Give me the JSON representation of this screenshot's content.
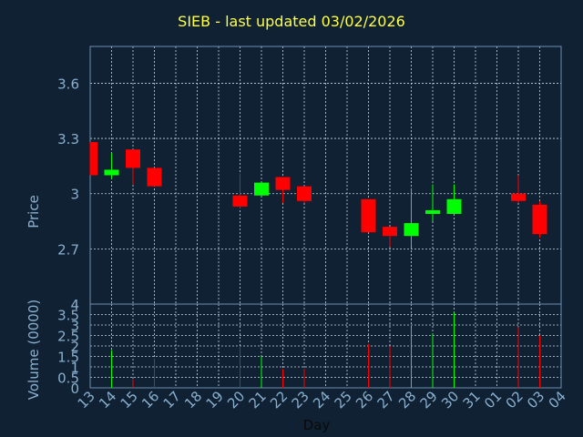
{
  "chart_data": {
    "type": "candlestick",
    "title": "SIEB - last updated 03/02/2026",
    "xlabel": "Day",
    "price_panel": {
      "ylabel": "Price",
      "ylim": [
        2.4,
        3.8
      ],
      "yticks": [
        "2.7",
        "3",
        "3.3",
        "3.6"
      ],
      "grid": true
    },
    "volume_panel": {
      "ylabel": "Volume (0000)",
      "ylim": [
        0,
        4
      ],
      "yticks": [
        "0",
        "0.5",
        "1",
        "1.5",
        "2",
        "2.5",
        "3",
        "3.5",
        "4"
      ],
      "grid": true
    },
    "x_tick_labels": [
      "13",
      "14",
      "15",
      "16",
      "17",
      "18",
      "19",
      "20",
      "21",
      "22",
      "23",
      "24",
      "25",
      "26",
      "27",
      "28",
      "29",
      "30",
      "31",
      "01",
      "02",
      "03",
      "04"
    ],
    "candles": [
      {
        "day": "13",
        "open": 3.28,
        "high": 3.28,
        "low": 3.1,
        "close": 3.1,
        "volume": 0
      },
      {
        "day": "14",
        "open": 3.1,
        "high": 3.22,
        "low": 3.08,
        "close": 3.13,
        "volume": 1.8
      },
      {
        "day": "15",
        "open": 3.24,
        "high": 3.24,
        "low": 3.05,
        "close": 3.14,
        "volume": 0.4
      },
      {
        "day": "16",
        "open": 3.14,
        "high": 3.14,
        "low": 3.04,
        "close": 3.04,
        "volume": 1.4
      },
      {
        "day": "20",
        "open": 2.99,
        "high": 3.11,
        "low": 2.92,
        "close": 2.93,
        "volume": 2.0
      },
      {
        "day": "21",
        "open": 2.99,
        "high": 3.06,
        "low": 2.99,
        "close": 3.06,
        "volume": 1.5
      },
      {
        "day": "22",
        "open": 3.09,
        "high": 3.09,
        "low": 2.95,
        "close": 3.02,
        "volume": 0.9
      },
      {
        "day": "23",
        "open": 3.04,
        "high": 3.04,
        "low": 2.95,
        "close": 2.96,
        "volume": 0.9
      },
      {
        "day": "26",
        "open": 2.97,
        "high": 2.97,
        "low": 2.79,
        "close": 2.79,
        "volume": 2.1
      },
      {
        "day": "27",
        "open": 2.82,
        "high": 2.82,
        "low": 2.71,
        "close": 2.77,
        "volume": 2.0
      },
      {
        "day": "28",
        "open": 2.77,
        "high": 3.03,
        "low": 2.71,
        "close": 2.84,
        "volume": 2.9
      },
      {
        "day": "29",
        "open": 2.89,
        "high": 3.05,
        "low": 2.85,
        "close": 2.91,
        "volume": 2.6
      },
      {
        "day": "30",
        "open": 2.89,
        "high": 3.05,
        "low": 2.89,
        "close": 2.97,
        "volume": 3.6
      },
      {
        "day": "02",
        "open": 3.0,
        "high": 3.1,
        "low": 2.95,
        "close": 2.96,
        "volume": 2.9
      },
      {
        "day": "03",
        "open": 2.94,
        "high": 2.96,
        "low": 2.76,
        "close": 2.78,
        "volume": 2.5
      }
    ],
    "colors": {
      "background": "#0f2132",
      "up": "#00ff00",
      "down": "#ff0000",
      "title": "#ffff44",
      "axis_text": "#8ab0d0",
      "grid": "#c8d8e8",
      "frame": "#6f8fb0"
    }
  }
}
